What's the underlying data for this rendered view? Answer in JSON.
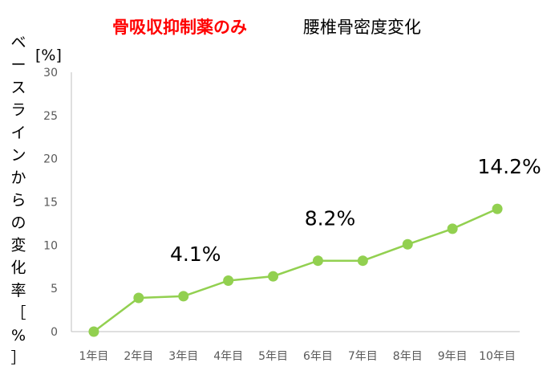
{
  "chart_data": {
    "type": "line",
    "title_highlight": "骨吸収抑制薬のみ",
    "title": "腰椎骨密度変化",
    "unit_label": "[%]",
    "ylabel": "ベースラインからの変化率［%］",
    "ylim": [
      0,
      30
    ],
    "y_ticks": [
      "0",
      "5",
      "10",
      "15",
      "20",
      "25",
      "30"
    ],
    "categories": [
      "1年目",
      "2年目",
      "3年目",
      "4年目",
      "5年目",
      "6年目",
      "7年目",
      "8年目",
      "9年目",
      "10年目"
    ],
    "series": [
      {
        "values": [
          0,
          3.9,
          4.1,
          5.9,
          6.4,
          8.2,
          8.2,
          10.1,
          11.9,
          14.2
        ]
      }
    ],
    "annotations": [
      {
        "text": "4.1%",
        "category_index": 2
      },
      {
        "text": "8.2%",
        "category_index": 5
      },
      {
        "text": "14.2%",
        "category_index": 9
      }
    ],
    "colors": {
      "line": "#92d050",
      "title_highlight": "#ff0000",
      "axis": "#bfbfbf"
    },
    "grid": false,
    "legend": "none"
  }
}
